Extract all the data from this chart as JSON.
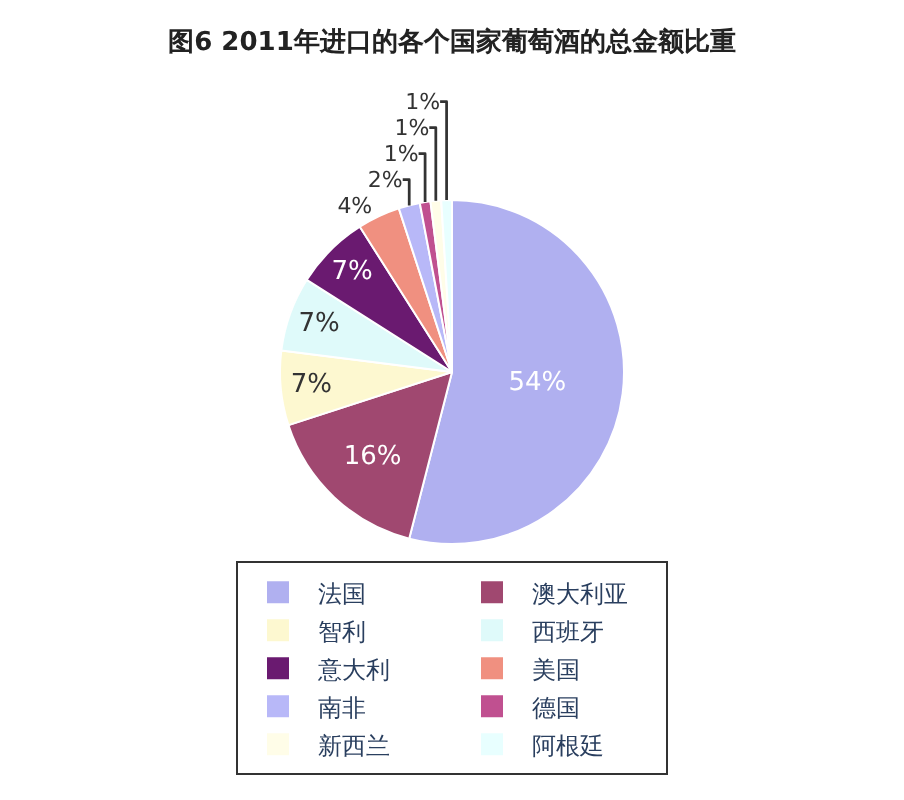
{
  "chart_data": {
    "type": "pie",
    "title": "图6 2011年进口的各个国家葡萄酒的总金额比重",
    "categories": [
      "法国",
      "澳大利亚",
      "智利",
      "西班牙",
      "意大利",
      "美国",
      "南非",
      "德国",
      "新西兰",
      "阿根廷"
    ],
    "values": [
      54,
      16,
      7,
      7,
      7,
      4,
      2,
      1,
      1,
      1
    ],
    "value_labels": [
      "54%",
      "16%",
      "7%",
      "7%",
      "7%",
      "4%",
      "2%",
      "1%",
      "1%",
      "1%"
    ],
    "colors": [
      "#b0b0f0",
      "#a04870",
      "#fdf8d0",
      "#dffafa",
      "#6a1a70",
      "#f09080",
      "#b8b8f8",
      "#c05090",
      "#fffde8",
      "#e8ffff"
    ],
    "legend": "bottom"
  }
}
